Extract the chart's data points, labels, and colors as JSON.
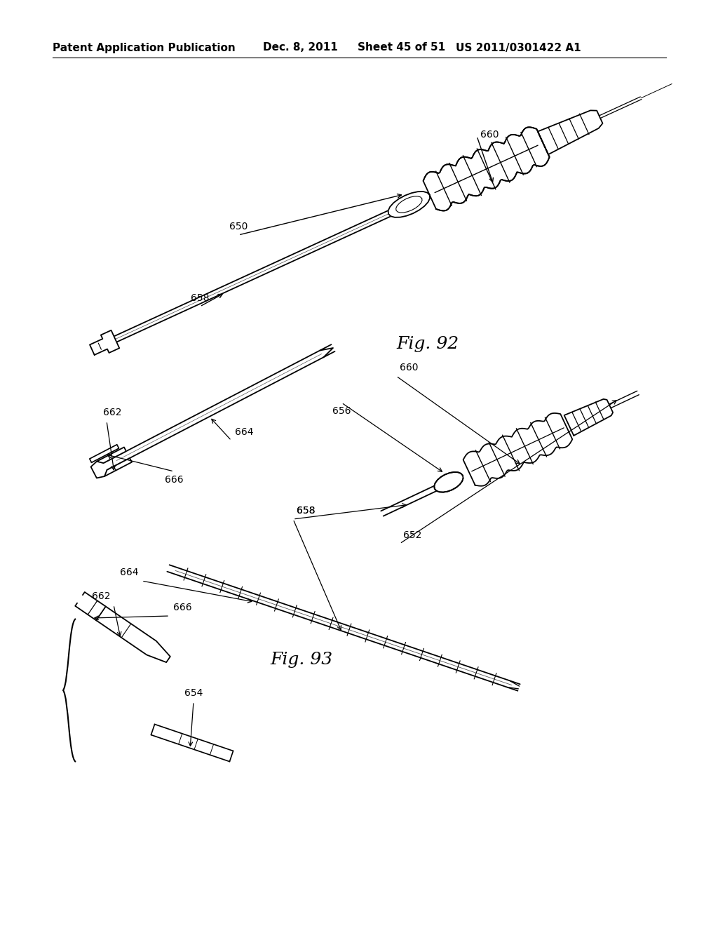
{
  "bg_color": "#ffffff",
  "header_text": "Patent Application Publication",
  "header_date": "Dec. 8, 2011",
  "header_sheet": "Sheet 45 of 51",
  "header_patent": "US 2011/0301422 A1",
  "fig92_label": "Fig. 92",
  "fig93_label": "Fig. 93",
  "text_color": "#000000",
  "line_color": "#000000"
}
